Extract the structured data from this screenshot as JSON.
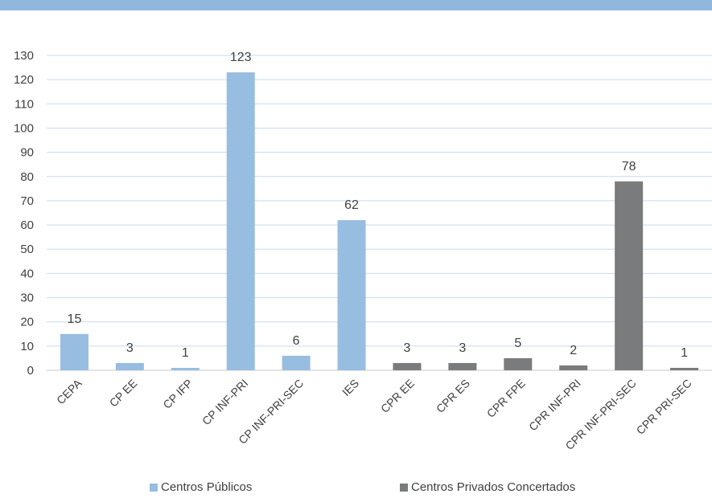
{
  "colors": {
    "top_bar": "#8fb8dc",
    "series_1": "#97bee0",
    "series_2": "#7a7b7d",
    "grid": "#c9d9ec"
  },
  "chart_data": {
    "type": "bar",
    "categories": [
      "CEPA",
      "CP EE",
      "CP IFP",
      "CP INF-PRI",
      "CP INF-PRI-SEC",
      "IES",
      "CPR EE",
      "CPR ES",
      "CPR FPE",
      "CPR INF-PRI",
      "CPR INF-PRI-SEC",
      "CPR PRI-SEC"
    ],
    "series": [
      {
        "name": "Centros Públicos",
        "values": [
          15,
          3,
          1,
          123,
          6,
          62,
          null,
          null,
          null,
          null,
          null,
          null
        ]
      },
      {
        "name": "Centros Privados Concertados",
        "values": [
          null,
          null,
          null,
          null,
          null,
          null,
          3,
          3,
          5,
          2,
          78,
          1
        ]
      }
    ],
    "ylim": [
      0,
      130
    ],
    "yticks": [
      0,
      10,
      20,
      30,
      40,
      50,
      60,
      70,
      80,
      90,
      100,
      110,
      120,
      130
    ],
    "grid": true,
    "legend_position": "bottom",
    "data_labels": true
  },
  "legend": {
    "items": [
      "Centros Públicos",
      "Centros Privados Concertados"
    ]
  }
}
